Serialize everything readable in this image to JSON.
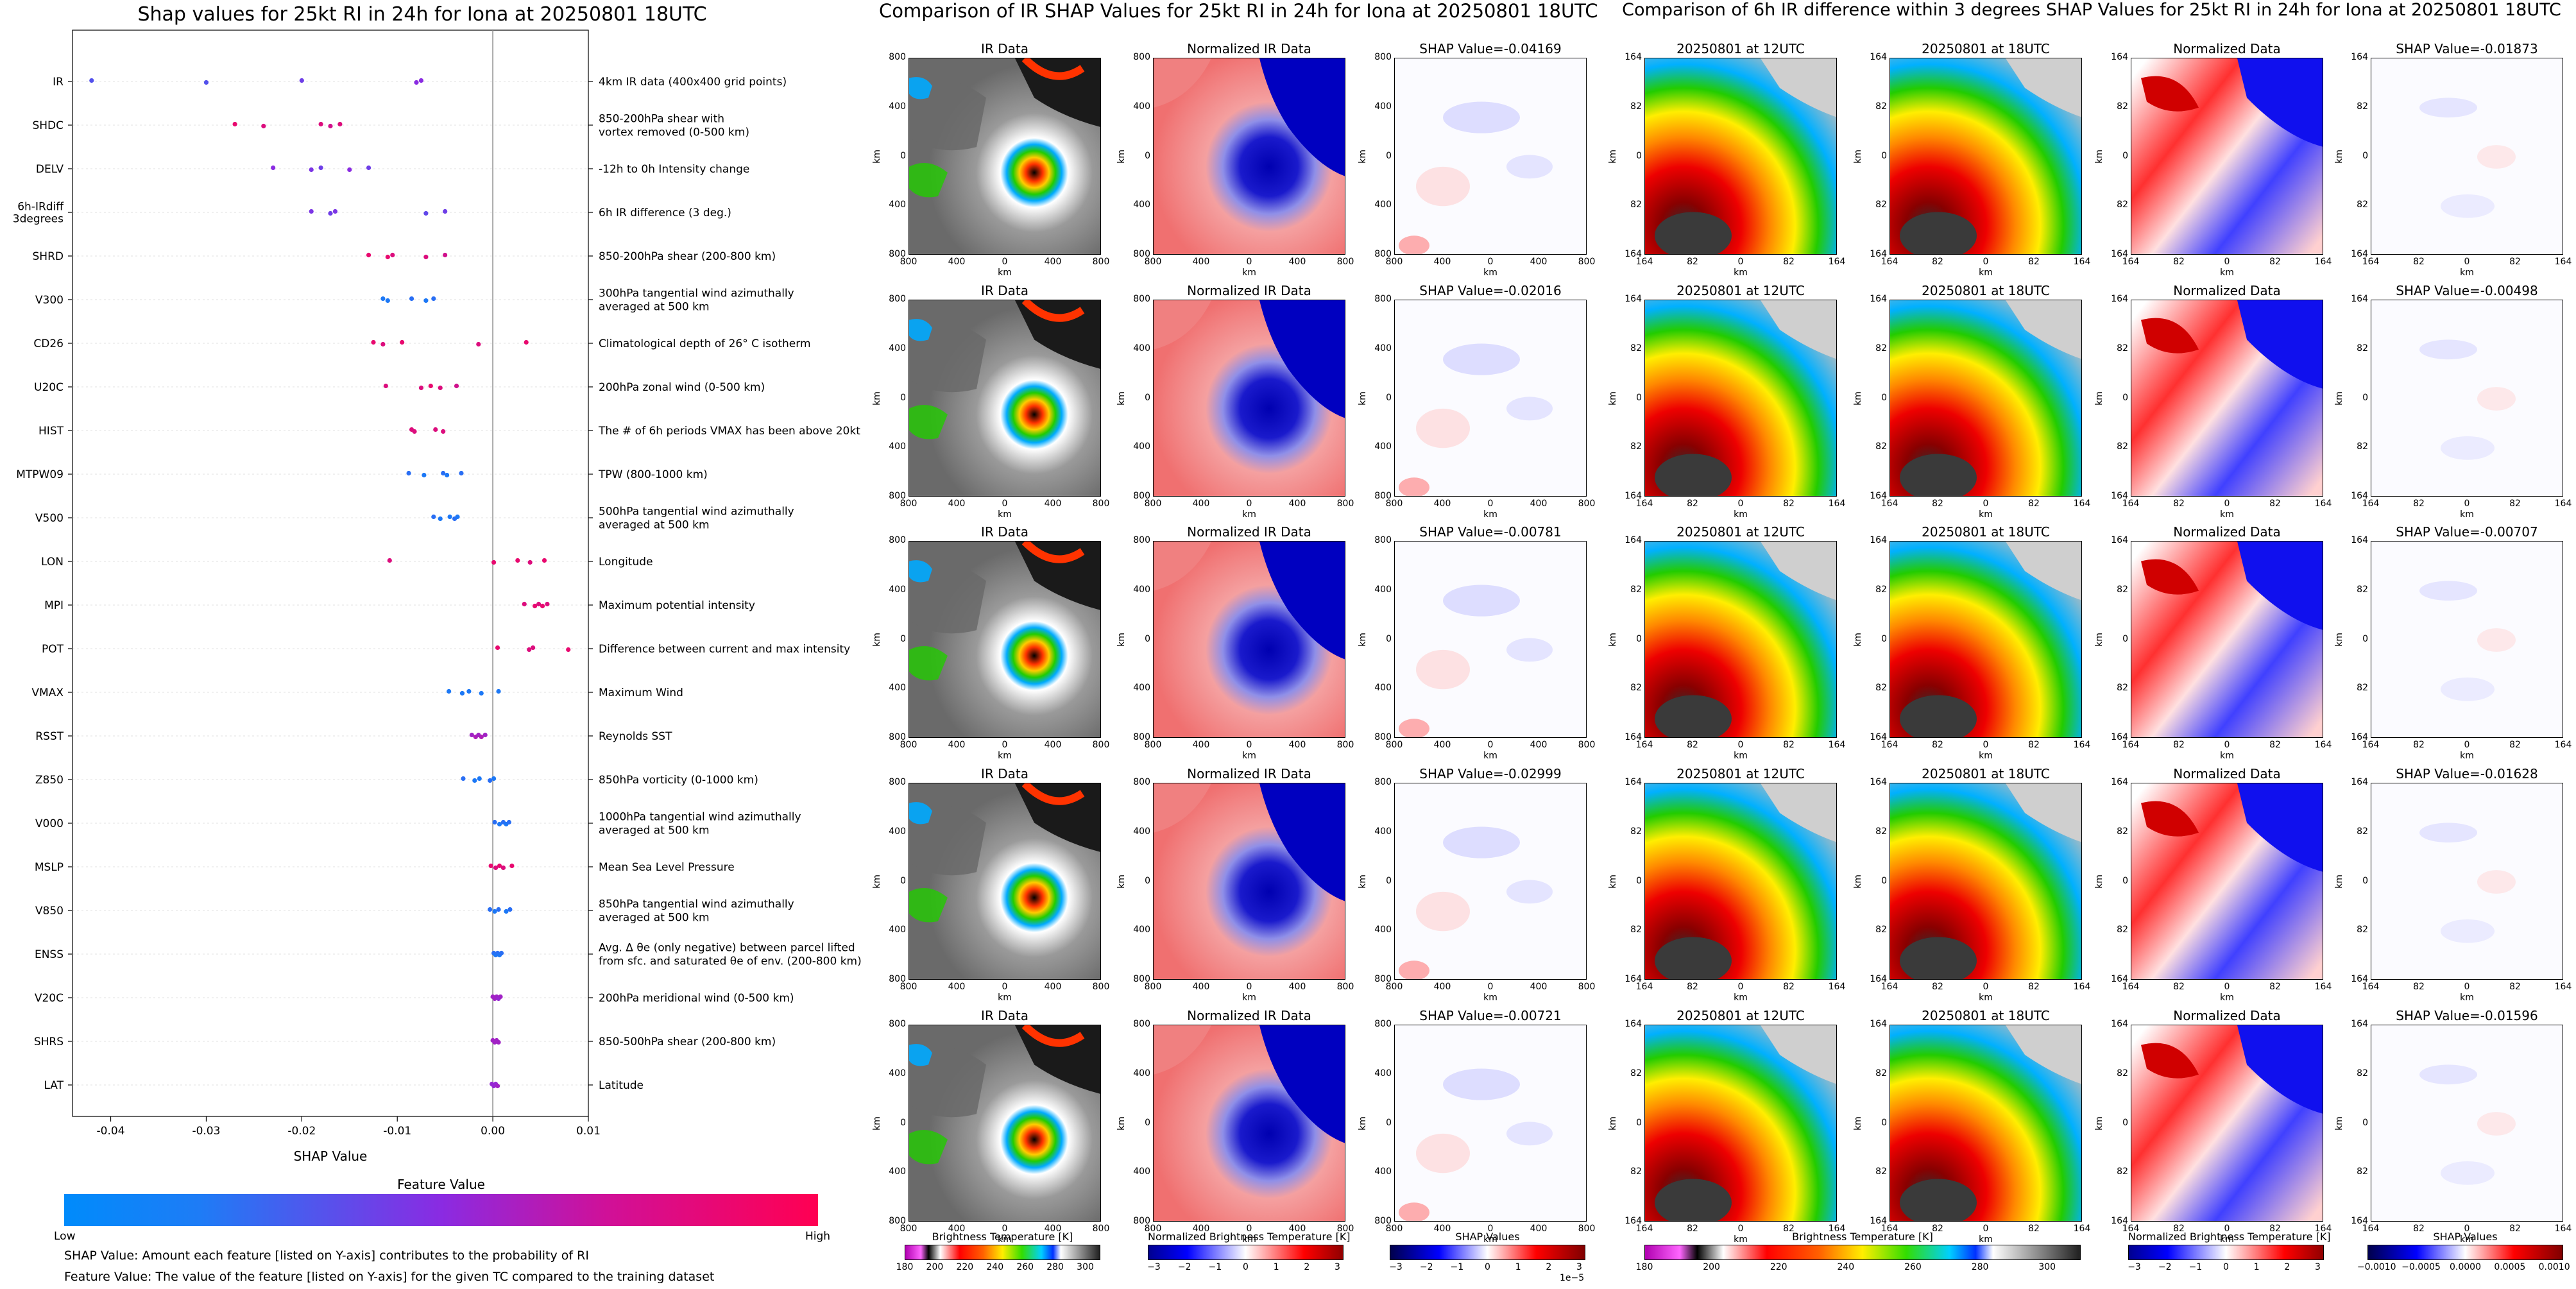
{
  "chart_data": [
    {
      "type": "scatter",
      "title": "Shap values for 25kt RI in 24h for Iona at 20250801 18UTC",
      "xlabel": "SHAP Value",
      "xlim": [
        -0.044,
        0.01
      ],
      "xticks": [
        "-0.04",
        "-0.03",
        "-0.02",
        "-0.01",
        "0.00",
        "0.01"
      ],
      "xtick_values": [
        -0.04,
        -0.03,
        -0.02,
        -0.01,
        0.0,
        0.01
      ],
      "features": [
        {
          "name": "IR",
          "desc": "4km IR data (400x400 grid points)",
          "points": [
            [
              -0.042,
              0.3
            ],
            [
              -0.03,
              0.3
            ],
            [
              -0.02,
              0.4
            ],
            [
              -0.008,
              0.5
            ],
            [
              -0.0075,
              0.5
            ]
          ]
        },
        {
          "name": "SHDC",
          "desc": "850-200hPa shear with\nvortex removed (0-500 km)",
          "points": [
            [
              -0.027,
              0.9
            ],
            [
              -0.024,
              0.85
            ],
            [
              -0.018,
              0.85
            ],
            [
              -0.017,
              0.8
            ],
            [
              -0.016,
              0.85
            ]
          ]
        },
        {
          "name": "DELV",
          "desc": "-12h to 0h Intensity change",
          "points": [
            [
              -0.023,
              0.5
            ],
            [
              -0.019,
              0.45
            ],
            [
              -0.018,
              0.4
            ],
            [
              -0.015,
              0.5
            ],
            [
              -0.013,
              0.4
            ]
          ]
        },
        {
          "name": "6h-IRdiff\n3degrees",
          "desc": "6h IR difference (3 deg.)",
          "points": [
            [
              -0.019,
              0.45
            ],
            [
              -0.017,
              0.4
            ],
            [
              -0.0165,
              0.45
            ],
            [
              -0.007,
              0.35
            ],
            [
              -0.005,
              0.4
            ]
          ]
        },
        {
          "name": "SHRD",
          "desc": "850-200hPa shear (200-800 km)",
          "points": [
            [
              -0.013,
              0.9
            ],
            [
              -0.011,
              0.9
            ],
            [
              -0.0105,
              0.85
            ],
            [
              -0.007,
              0.85
            ],
            [
              -0.005,
              0.8
            ]
          ]
        },
        {
          "name": "V300",
          "desc": "300hPa tangential wind azimuthally\naveraged at 500 km",
          "points": [
            [
              -0.0115,
              0.1
            ],
            [
              -0.011,
              0.1
            ],
            [
              -0.0085,
              0.15
            ],
            [
              -0.007,
              0.1
            ],
            [
              -0.0062,
              0.15
            ]
          ]
        },
        {
          "name": "CD26",
          "desc": "Climatological depth of 26° C isotherm",
          "points": [
            [
              -0.0125,
              0.9
            ],
            [
              -0.0115,
              0.85
            ],
            [
              -0.0095,
              0.9
            ],
            [
              -0.0015,
              0.85
            ],
            [
              0.0035,
              0.9
            ]
          ]
        },
        {
          "name": "U20C",
          "desc": "200hPa zonal wind (0-500 km)",
          "points": [
            [
              -0.0112,
              0.85
            ],
            [
              -0.0075,
              0.85
            ],
            [
              -0.0065,
              0.9
            ],
            [
              -0.0055,
              0.85
            ],
            [
              -0.0038,
              0.8
            ]
          ]
        },
        {
          "name": "HIST",
          "desc": "The # of 6h periods VMAX has been above 20kt",
          "points": [
            [
              -0.0085,
              0.85
            ],
            [
              -0.0082,
              0.85
            ],
            [
              -0.006,
              0.85
            ],
            [
              -0.0052,
              0.85
            ]
          ]
        },
        {
          "name": "MTPW09",
          "desc": "TPW (800-1000 km)",
          "points": [
            [
              -0.0088,
              0.15
            ],
            [
              -0.0072,
              0.1
            ],
            [
              -0.0052,
              0.15
            ],
            [
              -0.0048,
              0.1
            ],
            [
              -0.0033,
              0.15
            ]
          ]
        },
        {
          "name": "V500",
          "desc": "500hPa tangential wind azimuthally\naveraged at 500 km",
          "points": [
            [
              -0.0062,
              0.15
            ],
            [
              -0.0055,
              0.1
            ],
            [
              -0.0045,
              0.1
            ],
            [
              -0.004,
              0.15
            ],
            [
              -0.0037,
              0.1
            ]
          ]
        },
        {
          "name": "LON",
          "desc": "Longitude",
          "points": [
            [
              -0.0108,
              0.85
            ],
            [
              0.0001,
              0.9
            ],
            [
              0.0026,
              0.9
            ],
            [
              0.0039,
              0.85
            ],
            [
              0.0054,
              0.9
            ]
          ]
        },
        {
          "name": "MPI",
          "desc": "Maximum potential intensity",
          "points": [
            [
              0.0033,
              0.85
            ],
            [
              0.0044,
              0.9
            ],
            [
              0.0048,
              0.85
            ],
            [
              0.0052,
              0.9
            ],
            [
              0.0057,
              0.85
            ]
          ]
        },
        {
          "name": "POT",
          "desc": "Difference between current and max intensity",
          "points": [
            [
              0.0005,
              0.9
            ],
            [
              0.0038,
              0.85
            ],
            [
              0.0042,
              0.85
            ],
            [
              0.0079,
              0.9
            ]
          ]
        },
        {
          "name": "VMAX",
          "desc": "Maximum Wind",
          "points": [
            [
              -0.0046,
              0.1
            ],
            [
              -0.0032,
              0.1
            ],
            [
              -0.0025,
              0.1
            ],
            [
              -0.0012,
              0.1
            ],
            [
              0.0006,
              0.1
            ]
          ]
        },
        {
          "name": "RSST",
          "desc": "Reynolds SST",
          "points": [
            [
              -0.0022,
              0.6
            ],
            [
              -0.0018,
              0.65
            ],
            [
              -0.0015,
              0.6
            ],
            [
              -0.0012,
              0.65
            ],
            [
              -0.0008,
              0.6
            ]
          ]
        },
        {
          "name": "Z850",
          "desc": "850hPa vorticity (0-1000 km)",
          "points": [
            [
              -0.0031,
              0.15
            ],
            [
              -0.0019,
              0.1
            ],
            [
              -0.0014,
              0.1
            ],
            [
              -0.0003,
              0.15
            ],
            [
              0.0001,
              0.1
            ]
          ]
        },
        {
          "name": "V000",
          "desc": "1000hPa tangential wind azimuthally\naveraged at 500 km",
          "points": [
            [
              0.0002,
              0.15
            ],
            [
              0.0007,
              0.1
            ],
            [
              0.0011,
              0.15
            ],
            [
              0.0014,
              0.1
            ],
            [
              0.0017,
              0.15
            ]
          ]
        },
        {
          "name": "MSLP",
          "desc": "Mean Sea Level Pressure",
          "points": [
            [
              -0.0002,
              0.9
            ],
            [
              0.0003,
              0.85
            ],
            [
              0.0007,
              0.9
            ],
            [
              0.0011,
              0.85
            ],
            [
              0.002,
              0.9
            ]
          ]
        },
        {
          "name": "V850",
          "desc": "850hPa tangential wind azimuthally\naveraged at 500 km",
          "points": [
            [
              -0.0003,
              0.15
            ],
            [
              0.0002,
              0.1
            ],
            [
              0.0006,
              0.15
            ],
            [
              0.0014,
              0.1
            ],
            [
              0.0018,
              0.15
            ]
          ]
        },
        {
          "name": "ENSS",
          "desc": "Avg. Δ θe (only negative) between parcel lifted\nfrom sfc. and saturated θe of env. (200-800 km)",
          "points": [
            [
              0.0001,
              0.15
            ],
            [
              0.0003,
              0.1
            ],
            [
              0.0005,
              0.15
            ],
            [
              0.0007,
              0.1
            ],
            [
              0.0009,
              0.15
            ]
          ]
        },
        {
          "name": "V20C",
          "desc": "200hPa meridional wind (0-500 km)",
          "points": [
            [
              0.0,
              0.6
            ],
            [
              0.0002,
              0.6
            ],
            [
              0.0004,
              0.6
            ],
            [
              0.0006,
              0.55
            ],
            [
              0.0008,
              0.6
            ]
          ]
        },
        {
          "name": "SHRS",
          "desc": "850-500hPa shear (200-800 km)",
          "points": [
            [
              0.0,
              0.6
            ],
            [
              0.0002,
              0.6
            ],
            [
              0.0004,
              0.6
            ],
            [
              0.0006,
              0.6
            ]
          ]
        },
        {
          "name": "LAT",
          "desc": "Latitude",
          "points": [
            [
              -0.0001,
              0.55
            ],
            [
              0.0001,
              0.55
            ],
            [
              0.0003,
              0.55
            ],
            [
              0.0005,
              0.6
            ]
          ]
        }
      ],
      "colorbar": {
        "title": "Feature Value",
        "low": "Low",
        "high": "High",
        "colors": [
          "#008bfb",
          "#8a2be2",
          "#ff0052"
        ]
      },
      "notes": [
        "SHAP Value: Amount each feature [listed on Y-axis] contributes to the probability of RI",
        "Feature Value: The value of the feature [listed on Y-axis] for the given TC compared to the training dataset"
      ]
    },
    {
      "type": "heatmap",
      "title": "Comparison of IR SHAP Values for 25kt RI in 24h for Iona at 20250801 18UTC",
      "columns": [
        "IR Data",
        "Normalized IR Data",
        "SHAP Value"
      ],
      "shap_values": [
        "-0.04169",
        "-0.02016",
        "-0.00781",
        "-0.02999",
        "-0.00721"
      ],
      "shap_prefix": "SHAP Value=",
      "xticks": [
        "800",
        "400",
        "0",
        "400",
        "800"
      ],
      "yticks": [
        "800",
        "400",
        "0",
        "400",
        "800"
      ],
      "xlabel": "km",
      "ylabel": "km",
      "colorbars": [
        {
          "label": "Brightness Temperature [K]",
          "ticks": [
            "180",
            "200",
            "220",
            "240",
            "260",
            "280",
            "300"
          ],
          "range": [
            180,
            310
          ]
        },
        {
          "label": "Normalized Brightness Temperature [K]",
          "ticks": [
            "−3",
            "−2",
            "−1",
            "0",
            "1",
            "2",
            "3"
          ],
          "range": [
            -3.2,
            3.2
          ]
        },
        {
          "label": "SHAP Values",
          "ticks": [
            "−3",
            "−2",
            "−1",
            "0",
            "1",
            "2",
            "3"
          ],
          "range": [
            -3.2,
            3.2
          ],
          "offset": "1e−5"
        }
      ]
    },
    {
      "type": "heatmap",
      "title": "Comparison of 6h IR difference within 3 degrees SHAP Values for 25kt RI in 24h for Iona at 20250801 18UTC",
      "columns": [
        "20250801 at 12UTC",
        "20250801 at 18UTC",
        "Normalized Data",
        "SHAP Value"
      ],
      "shap_values": [
        "-0.01873",
        "-0.00498",
        "-0.00707",
        "-0.01628",
        "-0.01596"
      ],
      "shap_prefix": "SHAP Value=",
      "xticks": [
        "164",
        "82",
        "0",
        "82",
        "164"
      ],
      "yticks": [
        "164",
        "82",
        "0",
        "82",
        "164"
      ],
      "xlabel": "km",
      "ylabel": "km",
      "colorbars": [
        {
          "label": "Brightness Temperature [K]",
          "ticks": [
            "180",
            "200",
            "220",
            "240",
            "260",
            "280",
            "300"
          ],
          "range": [
            180,
            310
          ]
        },
        {
          "label": "Normalized Brightness Temperature [K]",
          "ticks": [
            "−3",
            "−2",
            "−1",
            "0",
            "1",
            "2",
            "3"
          ],
          "range": [
            -3.2,
            3.2
          ]
        },
        {
          "label": "SHAP Values",
          "ticks": [
            "−0.0010",
            "−0.0005",
            "0.0000",
            "0.0005",
            "0.0010"
          ],
          "range": [
            -0.0011,
            0.0011
          ]
        }
      ]
    }
  ]
}
